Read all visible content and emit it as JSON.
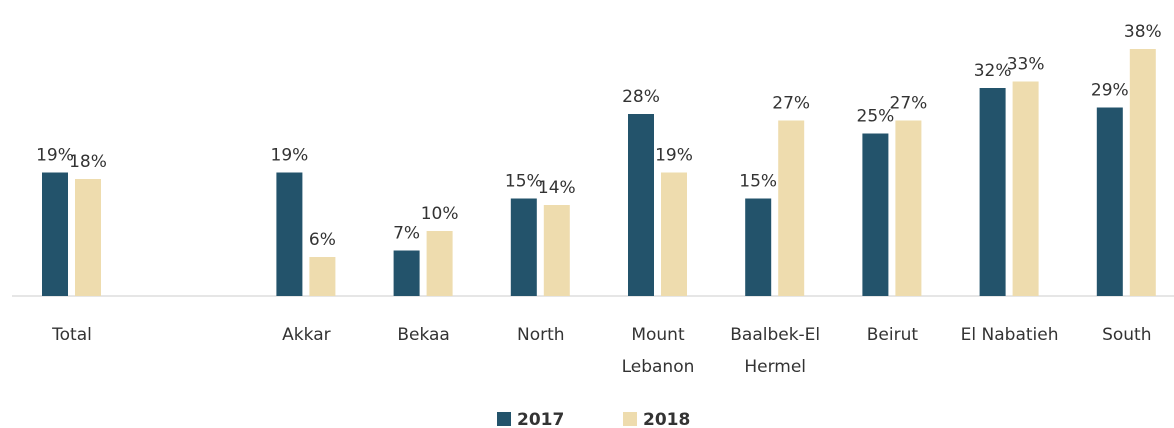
{
  "chart_data": {
    "type": "bar",
    "categories": [
      "Total",
      null,
      "Akkar",
      "Bekaa",
      "North",
      "Mount Lebanon",
      "Baalbek-El Hermel",
      "Beirut",
      "El Nabatieh",
      "South"
    ],
    "series": [
      {
        "name": "2017",
        "color": "#23536b",
        "values": [
          19,
          null,
          19,
          7,
          15,
          28,
          15,
          25,
          32,
          29
        ],
        "value_labels": [
          "19%",
          null,
          "19%",
          "7%",
          "15%",
          "28%",
          "15%",
          "25%",
          "32%",
          "29%"
        ]
      },
      {
        "name": "2018",
        "color": "#eedcae",
        "values": [
          18,
          null,
          6,
          10,
          14,
          19,
          27,
          27,
          33,
          38
        ],
        "value_labels": [
          "18%",
          null,
          "6%",
          "10%",
          "14%",
          "19%",
          "27%",
          "27%",
          "33%",
          "38%"
        ]
      }
    ]
  }
}
